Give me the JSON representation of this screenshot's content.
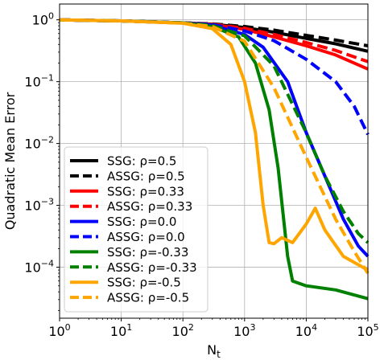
{
  "chart_data": {
    "type": "line",
    "xlabel": "N",
    "xlabel_sub": "t",
    "ylabel": "Quadratic Mean Error",
    "xscale": "log",
    "yscale": "log",
    "xlim": [
      1,
      100000
    ],
    "ylim": [
      1.5e-05,
      1.8
    ],
    "grid": true,
    "legend_placement": "lower-left",
    "x_ticks": [
      {
        "value": 1,
        "base": "10",
        "exp": "0"
      },
      {
        "value": 10,
        "base": "10",
        "exp": "1"
      },
      {
        "value": 100,
        "base": "10",
        "exp": "2"
      },
      {
        "value": 1000,
        "base": "10",
        "exp": "3"
      },
      {
        "value": 10000,
        "base": "10",
        "exp": "4"
      },
      {
        "value": 100000,
        "base": "10",
        "exp": "5"
      }
    ],
    "y_ticks": [
      {
        "value": 1,
        "base": "10",
        "exp": "0"
      },
      {
        "value": 0.1,
        "base": "10",
        "exp": "−1"
      },
      {
        "value": 0.01,
        "base": "10",
        "exp": "−2"
      },
      {
        "value": 0.001,
        "base": "10",
        "exp": "−3"
      },
      {
        "value": 0.0001,
        "base": "10",
        "exp": "−4"
      }
    ],
    "series": [
      {
        "name": "SSG: ρ=0.5",
        "method": "SSG",
        "rho": "0.5",
        "color": "#000000",
        "dashed": false,
        "x": [
          1,
          10,
          100,
          300,
          1000,
          3000,
          10000,
          30000,
          100000
        ],
        "y": [
          1.0,
          0.96,
          0.89,
          0.85,
          0.75,
          0.63,
          0.5,
          0.41,
          0.31
        ]
      },
      {
        "name": "ASSG: ρ=0.5",
        "method": "ASSG",
        "rho": "0.5",
        "color": "#000000",
        "dashed": true,
        "x": [
          1,
          10,
          100,
          300,
          1000,
          3000,
          10000,
          30000,
          100000
        ],
        "y": [
          1.0,
          0.96,
          0.89,
          0.86,
          0.78,
          0.68,
          0.56,
          0.47,
          0.38
        ]
      },
      {
        "name": "SSG: ρ=0.33",
        "method": "SSG",
        "rho": "0.33",
        "color": "#ff0000",
        "dashed": false,
        "x": [
          1,
          10,
          100,
          300,
          1000,
          3000,
          10000,
          30000,
          100000
        ],
        "y": [
          1.0,
          0.96,
          0.89,
          0.84,
          0.7,
          0.53,
          0.38,
          0.27,
          0.16
        ]
      },
      {
        "name": "ASSG: ρ=0.33",
        "method": "ASSG",
        "rho": "0.33",
        "color": "#ff0000",
        "dashed": true,
        "x": [
          1,
          10,
          100,
          300,
          1000,
          3000,
          10000,
          30000,
          100000
        ],
        "y": [
          1.0,
          0.96,
          0.89,
          0.85,
          0.73,
          0.58,
          0.43,
          0.32,
          0.21
        ]
      },
      {
        "name": "SSG: ρ=0.0",
        "method": "SSG",
        "rho": "0.0",
        "color": "#0000ff",
        "dashed": false,
        "x": [
          1,
          10,
          100,
          300,
          1000,
          2000,
          5000,
          10000,
          20000,
          40000,
          70000,
          100000
        ],
        "y": [
          1.0,
          0.96,
          0.89,
          0.82,
          0.58,
          0.36,
          0.1,
          0.015,
          0.003,
          0.0006,
          0.00022,
          0.00015
        ]
      },
      {
        "name": "ASSG: ρ=0.0",
        "method": "ASSG",
        "rho": "0.0",
        "color": "#0000ff",
        "dashed": true,
        "x": [
          1,
          10,
          100,
          300,
          1000,
          3000,
          10000,
          30000,
          60000,
          100000
        ],
        "y": [
          1.0,
          0.96,
          0.89,
          0.84,
          0.66,
          0.46,
          0.23,
          0.1,
          0.04,
          0.014
        ]
      },
      {
        "name": "SSG: ρ=-0.33",
        "method": "SSG",
        "rho": "-0.33",
        "color": "#008000",
        "dashed": false,
        "x": [
          1,
          10,
          100,
          300,
          800,
          1500,
          2500,
          3500,
          5000,
          6000,
          10000,
          30000,
          100000
        ],
        "y": [
          1.0,
          0.96,
          0.89,
          0.78,
          0.53,
          0.2,
          0.035,
          0.004,
          0.00015,
          6e-05,
          5e-05,
          4.3e-05,
          3.1e-05
        ]
      },
      {
        "name": "ASSG: ρ=-0.33",
        "method": "ASSG",
        "rho": "-0.33",
        "color": "#008000",
        "dashed": true,
        "x": [
          1,
          10,
          100,
          300,
          1000,
          3000,
          10000,
          20000,
          40000,
          70000,
          100000
        ],
        "y": [
          1.0,
          0.96,
          0.89,
          0.81,
          0.55,
          0.18,
          0.015,
          0.003,
          0.0008,
          0.00035,
          0.00025
        ]
      },
      {
        "name": "SSG: ρ=-0.5",
        "method": "SSG",
        "rho": "-0.5",
        "color": "#ffa500",
        "dashed": false,
        "x": [
          1,
          10,
          100,
          300,
          600,
          1000,
          1500,
          2000,
          2500,
          3000,
          4000,
          6000,
          10000,
          14000,
          20000,
          40000,
          100000
        ],
        "y": [
          1.0,
          0.96,
          0.88,
          0.72,
          0.4,
          0.1,
          0.015,
          0.001,
          0.00025,
          0.00024,
          0.0003,
          0.00025,
          0.0005,
          0.0009,
          0.0004,
          0.00015,
          9e-05
        ]
      },
      {
        "name": "ASSG: ρ=-0.5",
        "method": "ASSG",
        "rho": "-0.5",
        "color": "#ffa500",
        "dashed": true,
        "x": [
          1,
          10,
          100,
          300,
          1000,
          3000,
          10000,
          30000,
          60000,
          100000
        ],
        "y": [
          1.0,
          0.96,
          0.88,
          0.78,
          0.45,
          0.08,
          0.006,
          0.0006,
          0.00018,
          8e-05
        ]
      }
    ]
  }
}
